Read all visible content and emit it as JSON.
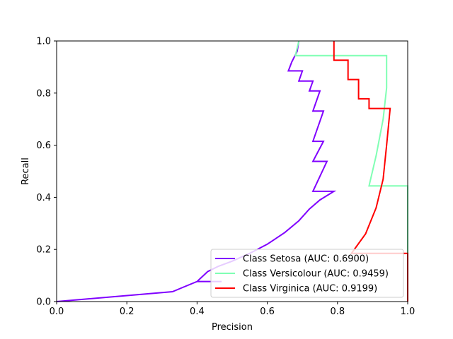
{
  "chart_data": {
    "type": "line",
    "xlabel": "Precision",
    "ylabel": "Recall",
    "xlim": [
      0,
      1
    ],
    "ylim": [
      0,
      1
    ],
    "grid": false,
    "legend_position": "lower-right",
    "x_ticks": [
      "0.0",
      "0.2",
      "0.4",
      "0.6",
      "0.8",
      "1.0"
    ],
    "y_ticks": [
      "0.0",
      "0.2",
      "0.4",
      "0.6",
      "0.8",
      "1.0"
    ],
    "series": [
      {
        "name": "Class Setosa (AUC: 0.6900)",
        "color": "#8000ff",
        "points": [
          [
            0.0,
            0.0
          ],
          [
            0.33,
            0.038
          ],
          [
            0.4,
            0.077
          ],
          [
            0.47,
            0.077
          ],
          [
            0.4,
            0.077
          ],
          [
            0.43,
            0.115
          ],
          [
            0.46,
            0.135
          ],
          [
            0.5,
            0.155
          ],
          [
            0.55,
            0.185
          ],
          [
            0.6,
            0.22
          ],
          [
            0.65,
            0.265
          ],
          [
            0.69,
            0.31
          ],
          [
            0.72,
            0.355
          ],
          [
            0.75,
            0.39
          ],
          [
            0.79,
            0.423
          ],
          [
            0.73,
            0.423
          ],
          [
            0.77,
            0.538
          ],
          [
            0.73,
            0.538
          ],
          [
            0.76,
            0.615
          ],
          [
            0.73,
            0.615
          ],
          [
            0.76,
            0.731
          ],
          [
            0.73,
            0.731
          ],
          [
            0.75,
            0.808
          ],
          [
            0.72,
            0.808
          ],
          [
            0.73,
            0.846
          ],
          [
            0.69,
            0.846
          ],
          [
            0.7,
            0.885
          ],
          [
            0.66,
            0.885
          ],
          [
            0.67,
            0.92
          ],
          [
            0.685,
            0.96
          ],
          [
            0.69,
            1.0
          ]
        ]
      },
      {
        "name": "Class Versicolour (AUC: 0.9459)",
        "color": "#80ffb4",
        "points": [
          [
            1.0,
            0.0
          ],
          [
            1.0,
            0.444
          ],
          [
            0.89,
            0.444
          ],
          [
            0.91,
            0.56
          ],
          [
            0.93,
            0.7
          ],
          [
            0.94,
            0.82
          ],
          [
            0.94,
            0.944
          ],
          [
            0.68,
            0.944
          ],
          [
            0.69,
            1.0
          ]
        ]
      },
      {
        "name": "Class Virginica (AUC: 0.9199)",
        "color": "#ff0000",
        "points": [
          [
            1.0,
            0.0
          ],
          [
            1.0,
            0.185
          ],
          [
            0.84,
            0.185
          ],
          [
            0.88,
            0.26
          ],
          [
            0.91,
            0.36
          ],
          [
            0.93,
            0.47
          ],
          [
            0.94,
            0.6
          ],
          [
            0.95,
            0.741
          ],
          [
            0.89,
            0.741
          ],
          [
            0.89,
            0.778
          ],
          [
            0.86,
            0.778
          ],
          [
            0.86,
            0.852
          ],
          [
            0.83,
            0.852
          ],
          [
            0.83,
            0.926
          ],
          [
            0.79,
            0.926
          ],
          [
            0.79,
            0.963
          ],
          [
            0.79,
            1.0
          ]
        ]
      }
    ]
  }
}
